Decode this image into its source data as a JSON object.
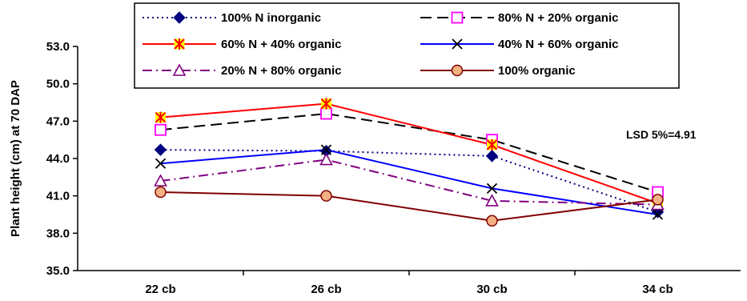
{
  "chart_data": {
    "type": "line",
    "categories": [
      "22 cb",
      "26 cb",
      "30 cb",
      "34 cb"
    ],
    "ylabel": "Plant height (cm) at 70 DAP",
    "xlabel": "",
    "ylim": [
      35.0,
      53.0
    ],
    "yticks": [
      "35.0",
      "38.0",
      "41.0",
      "44.0",
      "47.0",
      "50.0",
      "53.0"
    ],
    "yticks_values": [
      35.0,
      38.0,
      41.0,
      44.0,
      47.0,
      50.0,
      53.0
    ],
    "grid": false,
    "legend_position": "top",
    "annotation": "LSD 5%=4.91",
    "series": [
      {
        "name": "100% N inorganic",
        "values": [
          44.7,
          44.6,
          44.2,
          39.7
        ],
        "color": "#000080",
        "dash": "dotted",
        "marker": "diamond"
      },
      {
        "name": "80% N + 20% organic",
        "values": [
          46.3,
          47.6,
          45.5,
          41.3
        ],
        "color": "#000000",
        "dash": "long-dash",
        "marker": "square-open-magenta"
      },
      {
        "name": "60% N + 40% organic",
        "values": [
          47.3,
          48.4,
          45.1,
          40.4
        ],
        "color": "#ff0000",
        "dash": "solid",
        "marker": "star-yellow"
      },
      {
        "name": "40% N + 60% organic",
        "values": [
          43.6,
          44.7,
          41.6,
          39.5
        ],
        "color": "#0000ff",
        "dash": "solid",
        "marker": "x"
      },
      {
        "name": "20% N + 80% organic",
        "values": [
          42.2,
          43.9,
          40.6,
          40.3
        ],
        "color": "#800080",
        "dash": "dash-dot",
        "marker": "triangle-open"
      },
      {
        "name": "100% organic",
        "values": [
          41.3,
          41.0,
          39.0,
          40.7
        ],
        "color": "#800000",
        "dash": "solid",
        "marker": "circle-peach"
      }
    ]
  }
}
